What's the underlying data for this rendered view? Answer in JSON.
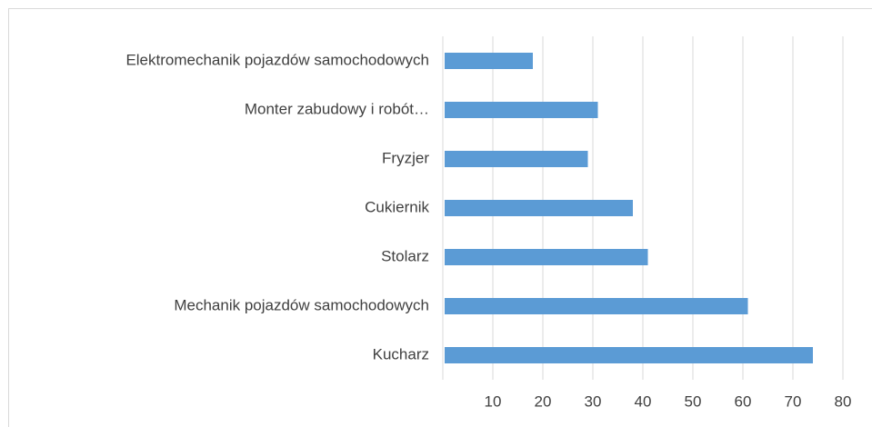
{
  "chart_data": {
    "type": "bar",
    "orientation": "horizontal",
    "categories": [
      "Elektromechanik pojazdów samochodowych",
      "Monter zabudowy i robót…",
      "Fryzjer",
      "Cukiernik",
      "Stolarz",
      "Mechanik pojazdów samochodowych",
      "Kucharz"
    ],
    "values": [
      18,
      31,
      29,
      38,
      41,
      61,
      74
    ],
    "color": "#5b9bd5",
    "xlim": [
      0,
      80
    ],
    "xticks": [
      10,
      20,
      30,
      40,
      50,
      60,
      70,
      80
    ],
    "grid": true
  }
}
